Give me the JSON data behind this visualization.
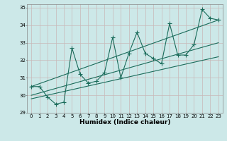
{
  "xlabel": "Humidex (Indice chaleur)",
  "ylabel": "",
  "bg_color": "#cce8e8",
  "grid_color": "#b0d8d8",
  "line_color": "#1a6b5a",
  "xlim": [
    -0.5,
    23.5
  ],
  "ylim": [
    29,
    35.2
  ],
  "xticks": [
    0,
    1,
    2,
    3,
    4,
    5,
    6,
    7,
    8,
    9,
    10,
    11,
    12,
    13,
    14,
    15,
    16,
    17,
    18,
    19,
    20,
    21,
    22,
    23
  ],
  "yticks": [
    29,
    30,
    31,
    32,
    33,
    34,
    35
  ],
  "series1": [
    30.5,
    30.5,
    29.9,
    29.5,
    29.6,
    32.7,
    31.2,
    30.7,
    30.8,
    31.3,
    33.3,
    31.0,
    32.4,
    33.6,
    32.4,
    32.1,
    31.8,
    34.1,
    32.3,
    32.3,
    32.9,
    34.9,
    34.4,
    34.3
  ],
  "series2_x": [
    0,
    23
  ],
  "series2_y": [
    30.5,
    34.3
  ],
  "series3_x": [
    0,
    23
  ],
  "series3_y": [
    30.0,
    33.0
  ],
  "series4_x": [
    0,
    23
  ],
  "series4_y": [
    29.8,
    32.2
  ],
  "marker": "+",
  "markersize": 4,
  "linewidth": 0.8
}
